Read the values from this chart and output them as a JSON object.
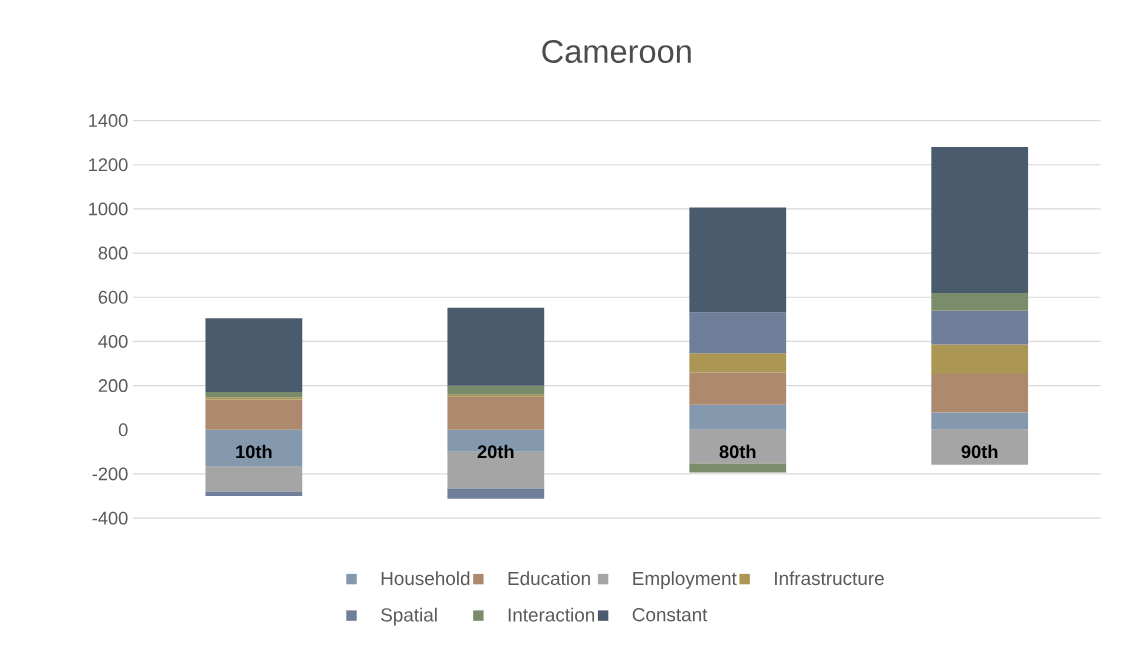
{
  "chart_data": {
    "type": "bar",
    "title": "Cameroon",
    "stacked": true,
    "categories": [
      "10th",
      "20th",
      "80th",
      "90th"
    ],
    "series": [
      {
        "name": "Household",
        "color": "#8499ae",
        "values": [
          -168,
          -100,
          113,
          78
        ]
      },
      {
        "name": "Education",
        "color": "#ad8a6e",
        "values": [
          137,
          150,
          146,
          175
        ]
      },
      {
        "name": "Employment",
        "color": "#a5a5a5",
        "values": [
          -113,
          -166,
          -153,
          -159
        ]
      },
      {
        "name": "Infrastructure",
        "color": "#ac9653",
        "values": [
          10,
          9,
          87,
          133
        ]
      },
      {
        "name": "Spatial",
        "color": "#6f7e99",
        "values": [
          -19,
          -46,
          186,
          153
        ]
      },
      {
        "name": "Interaction",
        "color": "#7a8c69",
        "values": [
          24,
          40,
          -41,
          80
        ]
      },
      {
        "name": "Constant",
        "color": "#4a5b6d",
        "values": [
          334,
          353,
          474,
          661
        ]
      }
    ],
    "ylim": [
      -400,
      1400
    ],
    "yticks": [
      -400,
      -200,
      0,
      200,
      400,
      600,
      800,
      1000,
      1200,
      1400
    ],
    "grid": "y",
    "legend": "bottom"
  }
}
